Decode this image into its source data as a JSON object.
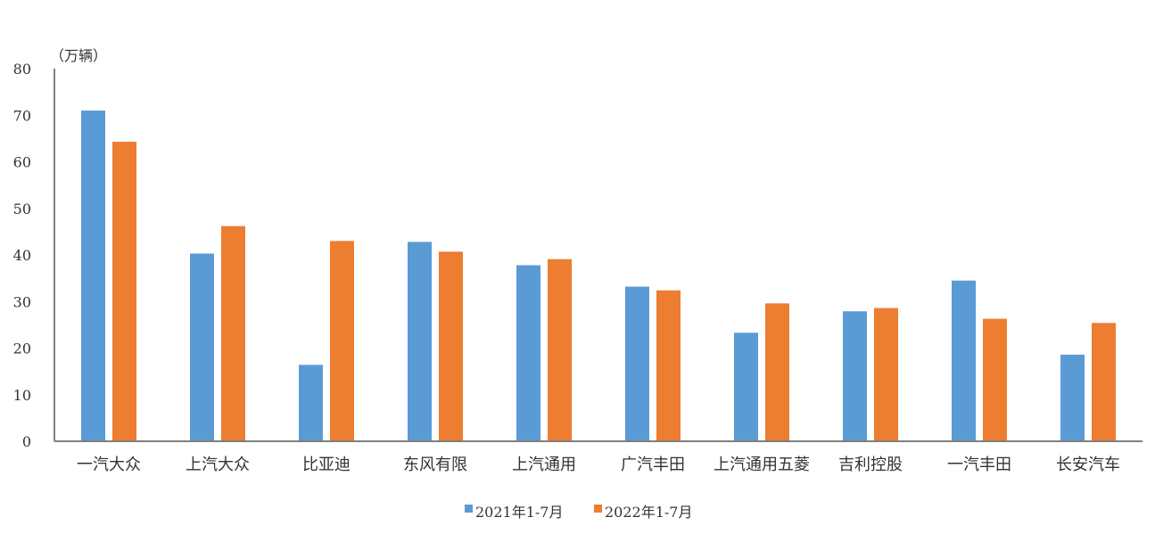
{
  "chart_data": {
    "type": "bar",
    "unit_label": "（万辆）",
    "ylim": [
      0,
      80
    ],
    "yticks": [
      0,
      10,
      20,
      30,
      40,
      50,
      60,
      70,
      80
    ],
    "grid": false,
    "legend_position": "bottom",
    "categories": [
      "一汽大众",
      "上汽大众",
      "比亚迪",
      "东风有限",
      "上汽通用",
      "广汽丰田",
      "上汽通用五菱",
      "吉利控股",
      "一汽丰田",
      "长安汽车"
    ],
    "series": [
      {
        "name": "2021年1-7月",
        "color": "#5B9BD5",
        "values": [
          71.0,
          40.3,
          16.4,
          42.8,
          37.8,
          33.2,
          23.3,
          27.9,
          34.5,
          18.6
        ]
      },
      {
        "name": "2022年1-7月",
        "color": "#ED7D31",
        "values": [
          64.3,
          46.2,
          43.0,
          40.7,
          39.1,
          32.4,
          29.6,
          28.6,
          26.3,
          25.4
        ]
      }
    ]
  }
}
